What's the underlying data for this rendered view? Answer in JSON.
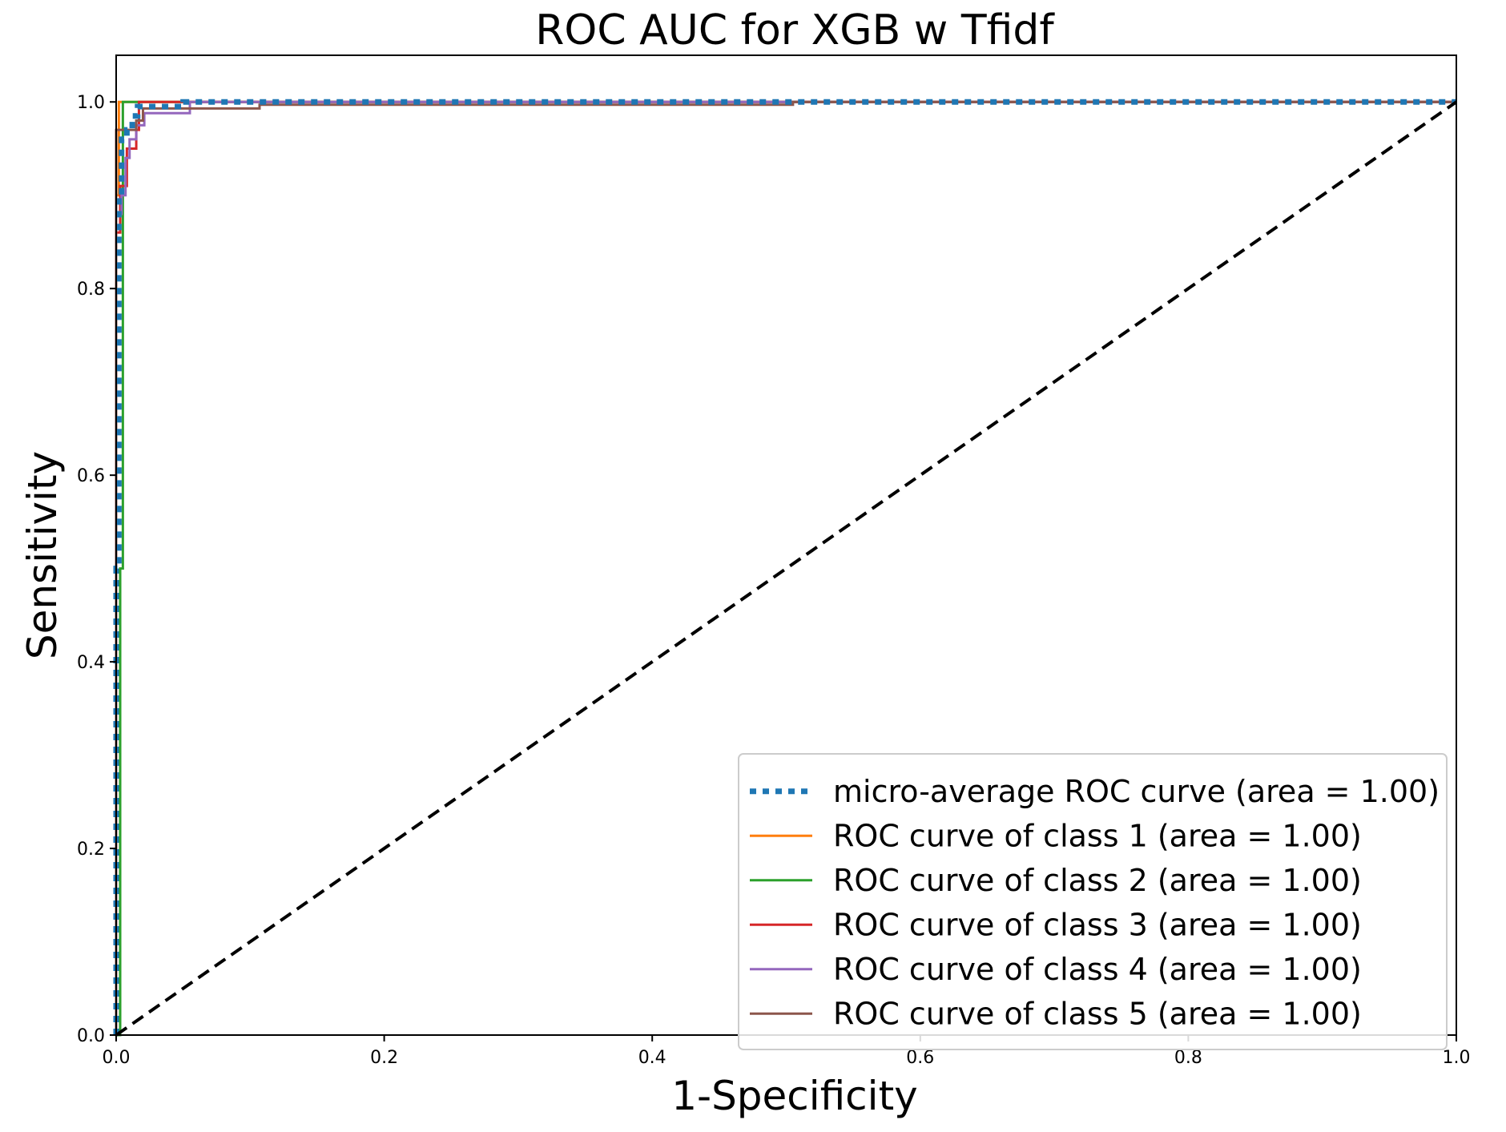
{
  "chart_data": {
    "type": "line",
    "title": "ROC AUC for XGB w Tfidf",
    "xlabel": "1-Specificity",
    "ylabel": "Sensitivity",
    "xlim": [
      0.0,
      1.0
    ],
    "ylim": [
      0.0,
      1.05
    ],
    "xticks": [
      "0.0",
      "0.2",
      "0.4",
      "0.6",
      "0.8",
      "1.0"
    ],
    "yticks": [
      "0.0",
      "0.2",
      "0.4",
      "0.6",
      "0.8",
      "1.0"
    ],
    "grid": false,
    "legend_position": "lower-right",
    "series": [
      {
        "name": "micro-average ROC curve (area = 1.00)",
        "color": "#1f77b4",
        "style": "dotted",
        "x": [
          0.0,
          0.0,
          0.002,
          0.002,
          0.004,
          0.004,
          0.008,
          0.008,
          0.012,
          0.012,
          0.016,
          0.016,
          0.05,
          0.05,
          1.0
        ],
        "y": [
          0.0,
          0.5,
          0.5,
          0.9,
          0.9,
          0.96,
          0.96,
          0.97,
          0.97,
          0.985,
          0.985,
          0.995,
          0.995,
          1.0,
          1.0
        ]
      },
      {
        "name": "ROC curve of class 1 (area = 1.00)",
        "color": "#ff7f0e",
        "style": "solid",
        "x": [
          0.0,
          0.0,
          0.002,
          0.002,
          1.0
        ],
        "y": [
          0.0,
          0.9,
          0.9,
          1.0,
          1.0
        ]
      },
      {
        "name": "ROC curve of class 2 (area = 1.00)",
        "color": "#2ca02c",
        "style": "solid",
        "x": [
          0.0,
          0.0,
          0.003,
          0.003,
          0.005,
          0.005,
          1.0
        ],
        "y": [
          0.0,
          0.0,
          0.0,
          0.5,
          0.5,
          1.0,
          1.0
        ]
      },
      {
        "name": "ROC curve of class 3 (area = 1.00)",
        "color": "#d62728",
        "style": "solid",
        "x": [
          0.0,
          0.0,
          0.003,
          0.003,
          0.008,
          0.008,
          0.015,
          0.015,
          0.017,
          0.017,
          1.0
        ],
        "y": [
          0.0,
          0.86,
          0.86,
          0.91,
          0.91,
          0.95,
          0.95,
          0.97,
          0.97,
          1.0,
          1.0
        ]
      },
      {
        "name": "ROC curve of class 4 (area = 1.00)",
        "color": "#9467bd",
        "style": "solid",
        "x": [
          0.0,
          0.0,
          0.004,
          0.004,
          0.007,
          0.007,
          0.01,
          0.01,
          0.015,
          0.015,
          0.021,
          0.021,
          0.055,
          0.055,
          1.0
        ],
        "y": [
          0.0,
          0.88,
          0.88,
          0.9,
          0.9,
          0.94,
          0.94,
          0.96,
          0.96,
          0.975,
          0.975,
          0.988,
          0.988,
          1.0,
          1.0
        ]
      },
      {
        "name": "ROC curve of class 5 (area = 1.00)",
        "color": "#8c564b",
        "style": "solid",
        "x": [
          0.0,
          0.0,
          0.015,
          0.015,
          0.02,
          0.02,
          0.107,
          0.107,
          0.505,
          0.505,
          1.0
        ],
        "y": [
          0.0,
          0.97,
          0.97,
          0.98,
          0.98,
          0.993,
          0.993,
          0.997,
          0.997,
          1.0,
          1.0
        ]
      },
      {
        "color": "#000000",
        "style": "dashed",
        "x": [
          0.0,
          1.0
        ],
        "y": [
          0.0,
          1.0
        ]
      }
    ]
  }
}
